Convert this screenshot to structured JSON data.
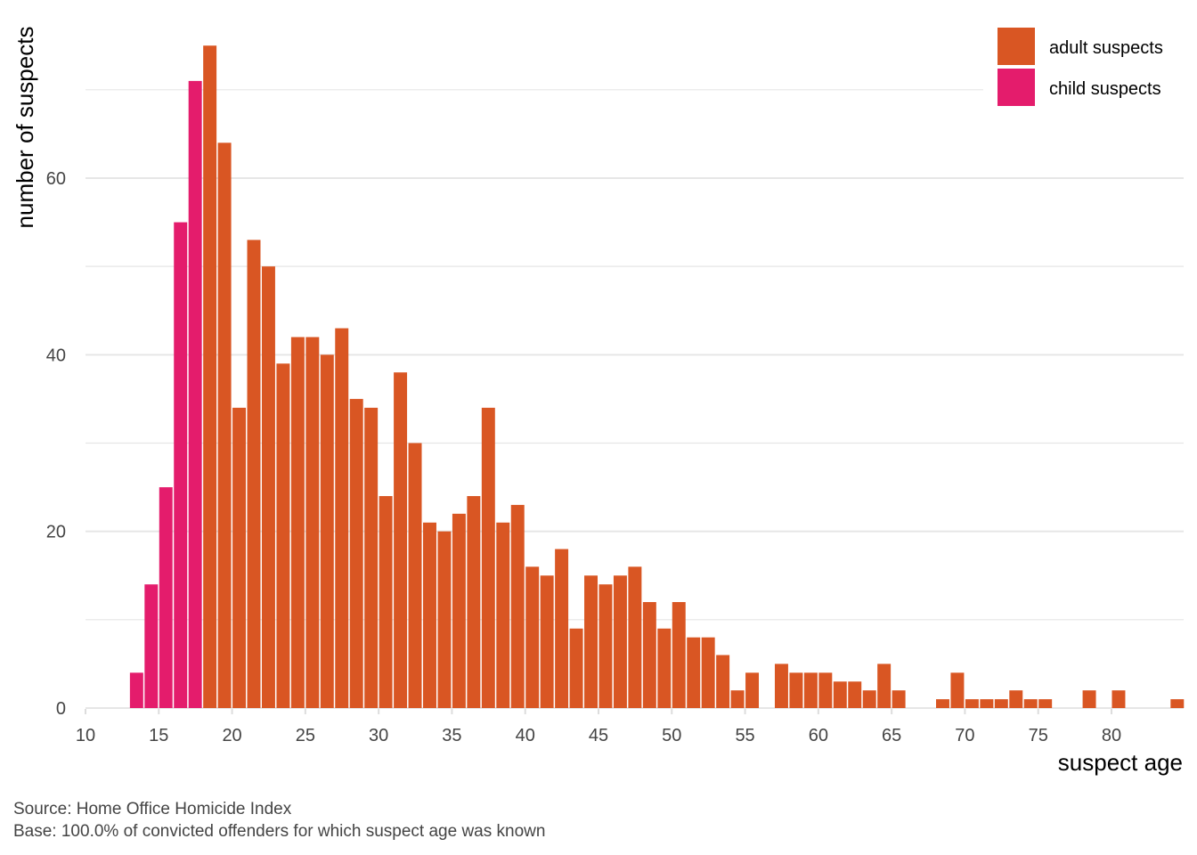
{
  "chart_data": {
    "type": "bar",
    "xlabel": "suspect age",
    "ylabel": "number of suspects",
    "xlim": [
      10,
      85
    ],
    "ylim": [
      0,
      75
    ],
    "xticks": [
      10,
      15,
      20,
      25,
      30,
      35,
      40,
      45,
      50,
      55,
      60,
      65,
      70,
      75,
      80
    ],
    "yticks": [
      0,
      20,
      40,
      60
    ],
    "grid": true,
    "legend_position": "top-right",
    "series": [
      {
        "name": "adult suspects",
        "color": "#D95623",
        "x": [
          18,
          19,
          20,
          21,
          22,
          23,
          24,
          25,
          26,
          27,
          28,
          29,
          30,
          31,
          32,
          33,
          34,
          35,
          36,
          37,
          38,
          39,
          40,
          41,
          42,
          43,
          44,
          45,
          46,
          47,
          48,
          49,
          50,
          51,
          52,
          53,
          54,
          55,
          56,
          57,
          58,
          59,
          60,
          61,
          62,
          63,
          64,
          65,
          66,
          67,
          68,
          69,
          70,
          71,
          72,
          73,
          74,
          75,
          76,
          77,
          78,
          79,
          80,
          81,
          82,
          83,
          84
        ],
        "values": [
          75,
          64,
          34,
          53,
          50,
          39,
          42,
          42,
          40,
          43,
          35,
          34,
          24,
          38,
          30,
          21,
          20,
          22,
          24,
          34,
          21,
          23,
          16,
          15,
          18,
          9,
          15,
          14,
          15,
          16,
          12,
          9,
          12,
          8,
          8,
          6,
          2,
          4,
          0,
          5,
          4,
          4,
          4,
          3,
          3,
          2,
          5,
          2,
          0,
          0,
          1,
          4,
          1,
          1,
          1,
          2,
          1,
          1,
          0,
          0,
          2,
          0,
          2,
          0,
          0,
          0,
          1
        ]
      },
      {
        "name": "child suspects",
        "color": "#E41C6C",
        "x": [
          13,
          14,
          15,
          16,
          17
        ],
        "values": [
          4,
          14,
          25,
          55,
          71
        ]
      }
    ]
  },
  "caption": {
    "source": "Source: Home Office Homicide Index",
    "base": "Base: 100.0% of convicted offenders for which suspect age was known"
  }
}
